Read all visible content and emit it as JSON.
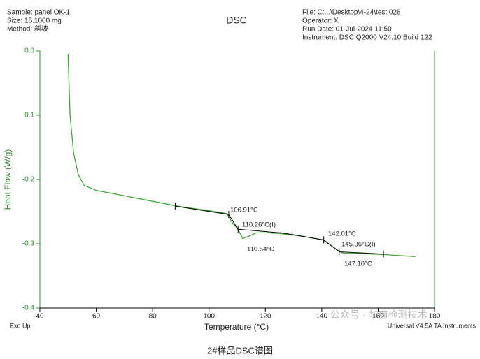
{
  "chart_data": {
    "type": "line",
    "title": "DSC",
    "header_left": [
      "Sample: panel OK-1",
      "Size:  15.1000 mg",
      "Method: 斜坡"
    ],
    "header_right": [
      "File: C:...\\Desktop\\4-24\\test.028",
      "Operator: X",
      "Run Date: 01-Jul-2024 11:50",
      "Instrument: DSC Q2000 V24.10 Build 122"
    ],
    "x_label": "Temperature (°C)",
    "y_label": "Heat Flow (W/g)",
    "exo_label": "Exo Up",
    "software_label": "Universal V4.5A TA Instruments",
    "watermark": "公众号 · 华南检测技术",
    "caption": "2#样品DSC谱图",
    "xlim": [
      40,
      180
    ],
    "xticks": [
      40,
      60,
      80,
      100,
      120,
      140,
      160,
      180
    ],
    "ylim": [
      -0.4,
      0
    ],
    "yticks": [
      {
        "value": 0,
        "label": "0.0"
      },
      -0.1,
      -0.2,
      -0.3,
      -0.4
    ],
    "color": "#3aa832",
    "x": [
      50,
      50.7,
      52,
      53.7,
      55.7,
      60,
      70.7,
      88.2,
      100.7,
      106.4,
      108.2,
      110.2,
      112,
      114.2,
      116.7,
      120.5,
      125.3,
      132.8,
      140.3,
      142.8,
      145.3,
      147.8,
      152.8,
      162.7,
      173.2
    ],
    "values": [
      -0.005,
      -0.1,
      -0.16,
      -0.193,
      -0.209,
      -0.217,
      -0.226,
      -0.241,
      -0.249,
      -0.253,
      -0.267,
      -0.277,
      -0.292,
      -0.288,
      -0.283,
      -0.283,
      -0.284,
      -0.288,
      -0.294,
      -0.301,
      -0.309,
      -0.315,
      -0.315,
      -0.317,
      -0.32
    ],
    "analysis": {
      "color": "#000000",
      "x": [
        88,
        107,
        110.3,
        125.5,
        129.5,
        140.7,
        146.2,
        161.9
      ],
      "values": [
        -0.2415,
        -0.2545,
        -0.2775,
        -0.283,
        -0.2855,
        -0.294,
        -0.3125,
        -0.316
      ]
    },
    "annotations": [
      "106.91°C",
      "110.26°C(I)",
      "110.54°C",
      "142.01°C",
      "145.36°C(I)",
      "147.10°C"
    ]
  }
}
